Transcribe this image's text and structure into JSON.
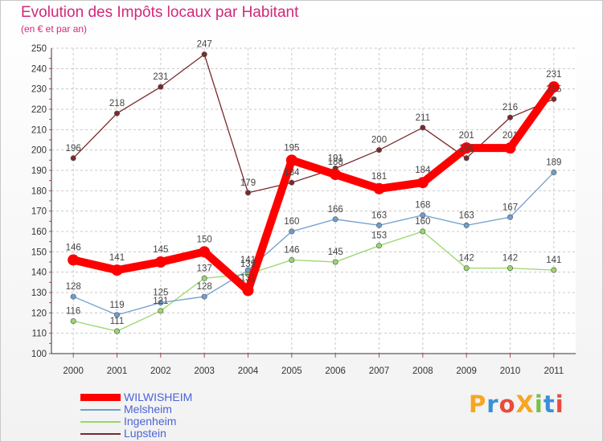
{
  "title": "Evolution des Impôts locaux par Habitant",
  "subtitle": "(en € et par an)",
  "logo": "ProXiti",
  "chart_data": {
    "type": "line",
    "title": "Evolution des Impôts locaux par Habitant",
    "subtitle": "(en € et par an)",
    "x": [
      2000,
      2001,
      2002,
      2003,
      2004,
      2005,
      2006,
      2007,
      2008,
      2009,
      2010,
      2011
    ],
    "ylim": [
      100,
      250
    ],
    "yticks": [
      100,
      110,
      120,
      130,
      140,
      150,
      160,
      170,
      180,
      190,
      200,
      210,
      220,
      230,
      240,
      250
    ],
    "grid": true,
    "legend": "bottom-left",
    "series": [
      {
        "name": "Lupstein",
        "color": "#7a2a2a",
        "values": [
          196,
          218,
          231,
          247,
          179,
          184,
          191,
          200,
          211,
          196,
          216,
          225
        ],
        "labels": [
          "196",
          "218",
          "231",
          "247",
          "179",
          "184",
          "191",
          "200",
          "211",
          "196",
          "216",
          "225"
        ]
      },
      {
        "name": "Ingenheim",
        "color": "#99d66b",
        "values": [
          116,
          111,
          121,
          137,
          139,
          146,
          145,
          153,
          160,
          142,
          142,
          141
        ],
        "labels": [
          "116",
          "111",
          "121",
          "137",
          "139",
          "146",
          "145",
          "153",
          "160",
          "142",
          "142",
          "141"
        ]
      },
      {
        "name": "Melsheim",
        "color": "#6f9ecd",
        "values": [
          128,
          119,
          125,
          128,
          141,
          160,
          166,
          163,
          168,
          163,
          167,
          189
        ],
        "labels": [
          "128",
          "119",
          "125",
          "128",
          "141",
          "160",
          "166",
          "163",
          "168",
          "163",
          "167",
          "189"
        ]
      },
      {
        "name": "WILWISHEIM",
        "color": "#ff0000",
        "values": [
          146,
          141,
          145,
          150,
          131,
          195,
          188,
          181,
          184,
          201,
          201,
          231
        ],
        "labels": [
          "146",
          "141",
          "145",
          "150",
          "131",
          "195",
          "188",
          "181",
          "184",
          "201",
          "201",
          "231"
        ]
      }
    ]
  },
  "legend": [
    {
      "name": "WILWISHEIM",
      "color": "#ff0000"
    },
    {
      "name": "Melsheim",
      "color": "#6f9ecd"
    },
    {
      "name": "Ingenheim",
      "color": "#99d66b"
    },
    {
      "name": "Lupstein",
      "color": "#7a2a2a"
    }
  ]
}
